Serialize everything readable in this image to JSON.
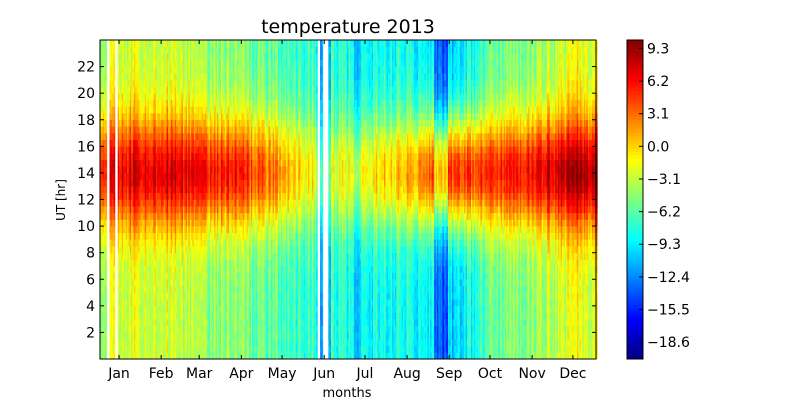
{
  "chart_data": {
    "type": "heatmap",
    "title": "temperature 2013",
    "xlabel": "months",
    "ylabel": "UT [hr]",
    "x_tick_labels": [
      "Jan",
      "Feb",
      "Mar",
      "Apr",
      "May",
      "Jun",
      "Jul",
      "Aug",
      "Sep",
      "Oct",
      "Nov",
      "Dec"
    ],
    "x_tick_days": [
      15,
      46,
      74,
      105,
      135,
      166,
      196,
      227,
      258,
      288,
      319,
      349
    ],
    "xlim_days": [
      1,
      366
    ],
    "y_ticks": [
      2,
      4,
      6,
      8,
      10,
      12,
      14,
      16,
      18,
      20,
      22
    ],
    "ylim": [
      0,
      24
    ],
    "colorbar": {
      "label": "",
      "range": [
        -20.2,
        10.1
      ],
      "ticks": [
        9.3,
        6.2,
        3.1,
        0.0,
        -3.1,
        -6.2,
        -9.3,
        -12.4,
        -15.5,
        -18.6
      ],
      "tick_labels": [
        "9.3",
        "6.2",
        "3.1",
        "0.0",
        "−3.1",
        "−6.2",
        "−9.3",
        "−12.4",
        "−15.5",
        "−18.6"
      ],
      "colormap": "jet"
    },
    "value_field": {
      "description": "temperature by day of year and UT hour",
      "month_midday_max": [
        6.5,
        8.0,
        6.5,
        5.0,
        2.0,
        -2.5,
        -1.0,
        1.5,
        4.5,
        5.0,
        6.5,
        9.0
      ],
      "month_night_min": [
        -3.0,
        -2.0,
        -4.0,
        -5.5,
        -6.5,
        -7.5,
        -8.5,
        -8.0,
        -11.0,
        -6.0,
        -4.5,
        -2.0
      ],
      "missing_day_ranges": [
        [
          6,
          7
        ],
        [
          12,
          13
        ],
        [
          161,
          162
        ],
        [
          165,
          168
        ]
      ],
      "cold_day_ranges": [
        [
          160,
          170
        ],
        [
          188,
          192
        ],
        [
          247,
          256
        ]
      ]
    }
  }
}
